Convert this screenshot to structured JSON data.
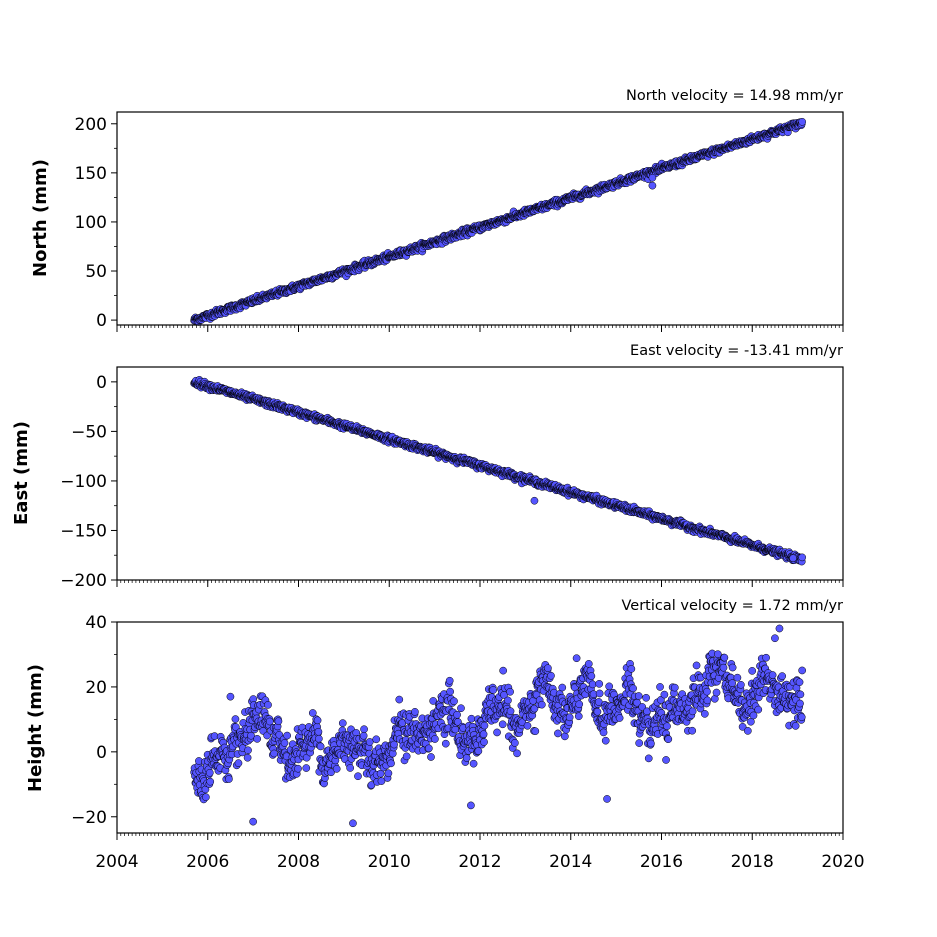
{
  "chart_data": [
    {
      "type": "scatter",
      "panel": "north",
      "annotation": "North velocity = 14.98 mm/yr",
      "ylabel": "North (mm)",
      "xlim": [
        2004,
        2020
      ],
      "ylim": [
        -5,
        212
      ],
      "yticks": [
        0,
        50,
        100,
        150,
        200
      ],
      "xticks": [
        2004,
        2006,
        2008,
        2010,
        2012,
        2014,
        2016,
        2018,
        2020
      ],
      "show_xtick_labels": false,
      "velocity_mm_per_yr": 14.98,
      "series_model": {
        "start": 2005.7,
        "end": 2019.1,
        "offset_at_start": 0,
        "noise_sd": 1.6
      },
      "outliers": [
        {
          "x": 2015.8,
          "y": 137
        },
        {
          "x": 2015.8,
          "y": 145
        }
      ],
      "colors": {
        "marker_fill": "#5555ff",
        "marker_edge": "#000000"
      }
    },
    {
      "type": "scatter",
      "panel": "east",
      "annotation": "East velocity = -13.41 mm/yr",
      "ylabel": "East (mm)",
      "xlim": [
        2004,
        2020
      ],
      "ylim": [
        -200,
        15
      ],
      "yticks": [
        0,
        -50,
        -100,
        -150,
        -200
      ],
      "ytick_labels": [
        "0",
        "−50",
        "−100",
        "−150",
        "−200"
      ],
      "xticks": [
        2004,
        2006,
        2008,
        2010,
        2012,
        2014,
        2016,
        2018,
        2020
      ],
      "show_xtick_labels": false,
      "velocity_mm_per_yr": -13.41,
      "series_model": {
        "start": 2005.7,
        "end": 2019.1,
        "offset_at_start": 0,
        "noise_sd": 1.5
      },
      "outliers": [
        {
          "x": 2013.2,
          "y": -120
        },
        {
          "x": 2018.9,
          "y": -178
        }
      ],
      "colors": {
        "marker_fill": "#5555ff",
        "marker_edge": "#000000"
      }
    },
    {
      "type": "scatter",
      "panel": "height",
      "annotation": "Vertical velocity = 1.72 mm/yr",
      "ylabel": "Height (mm)",
      "xlim": [
        2004,
        2020
      ],
      "ylim": [
        -25,
        40
      ],
      "yticks": [
        -20,
        0,
        20,
        40
      ],
      "ytick_labels": [
        "−20",
        "0",
        "20",
        "40"
      ],
      "xticks": [
        2004,
        2006,
        2008,
        2010,
        2012,
        2014,
        2016,
        2018,
        2020
      ],
      "xtick_labels": [
        "2004",
        "2006",
        "2008",
        "2010",
        "2012",
        "2014",
        "2016",
        "2018",
        "2020"
      ],
      "show_xtick_labels": true,
      "velocity_mm_per_yr": 1.72,
      "series_model": {
        "start": 2005.7,
        "end": 2019.1,
        "offset_at_start": -3,
        "noise_sd": 5.5
      },
      "outliers": [
        {
          "x": 2006.5,
          "y": 17
        },
        {
          "x": 2007.0,
          "y": -21.5
        },
        {
          "x": 2009.2,
          "y": -22
        },
        {
          "x": 2011.8,
          "y": -16.5
        },
        {
          "x": 2014.8,
          "y": -14.5
        },
        {
          "x": 2018.5,
          "y": 35
        },
        {
          "x": 2018.6,
          "y": 38
        },
        {
          "x": 2016.1,
          "y": -2.5
        }
      ],
      "colors": {
        "marker_fill": "#5555ff",
        "marker_edge": "#000000"
      }
    }
  ]
}
